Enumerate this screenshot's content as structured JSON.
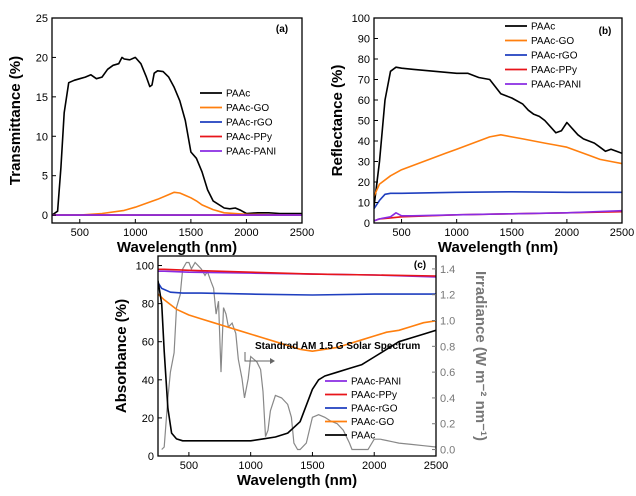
{
  "chart_data": [
    {
      "panel": "(a)",
      "type": "line",
      "xlabel": "Wavelength (nm)",
      "ylabel": "Transmittance (%)",
      "xlim": [
        250,
        2500
      ],
      "ylim": [
        -1,
        25
      ],
      "xticks": [
        500,
        1000,
        1500,
        2000,
        2500
      ],
      "yticks": [
        0,
        5,
        10,
        15,
        20,
        25
      ],
      "legend_position": "center-right",
      "series": [
        {
          "name": "PAAc",
          "color": "#000000",
          "x": [
            250,
            300,
            330,
            360,
            400,
            450,
            500,
            550,
            600,
            650,
            700,
            750,
            800,
            850,
            880,
            900,
            950,
            1000,
            1050,
            1100,
            1130,
            1150,
            1170,
            1200,
            1250,
            1300,
            1350,
            1400,
            1450,
            1500,
            1550,
            1600,
            1650,
            1700,
            1800,
            1850,
            1900,
            1950,
            2000,
            2100,
            2200,
            2300,
            2400,
            2500
          ],
          "y": [
            0,
            0.5,
            6,
            13,
            16.8,
            17.1,
            17.3,
            17.5,
            17.8,
            17.3,
            17.5,
            18.5,
            19.0,
            19.2,
            20.0,
            19.8,
            19.7,
            20.0,
            19.2,
            17.5,
            16.3,
            16.5,
            18.0,
            18.3,
            18.2,
            17.5,
            16.2,
            14.5,
            12.0,
            8.0,
            7.2,
            5.5,
            3.2,
            1.8,
            0.9,
            0.8,
            0.9,
            0.6,
            0.2,
            0.3,
            0.3,
            0.2,
            0.2,
            0.2
          ]
        },
        {
          "name": "PAAc-GO",
          "color": "#ff7f0e",
          "x": [
            250,
            500,
            700,
            900,
            1000,
            1100,
            1200,
            1300,
            1350,
            1400,
            1450,
            1500,
            1550,
            1600,
            1700,
            1800,
            2000,
            2200,
            2500
          ],
          "y": [
            0,
            0,
            0.2,
            0.6,
            1.0,
            1.5,
            2.0,
            2.6,
            2.9,
            2.8,
            2.5,
            2.2,
            1.8,
            1.3,
            0.7,
            0.3,
            0.1,
            0.05,
            0
          ]
        },
        {
          "name": "PAAc-rGO",
          "color": "#1f3fbf",
          "x": [
            250,
            2500
          ],
          "y": [
            0,
            0
          ]
        },
        {
          "name": "PAAc-PPy",
          "color": "#e8141a",
          "x": [
            250,
            2500
          ],
          "y": [
            0,
            0
          ]
        },
        {
          "name": "PAAc-PANI",
          "color": "#8a2be2",
          "x": [
            250,
            2500
          ],
          "y": [
            0,
            0
          ]
        }
      ]
    },
    {
      "panel": "(b)",
      "type": "line",
      "xlabel": "Wavelength (nm)",
      "ylabel": "Reflectance (%)",
      "xlim": [
        250,
        2500
      ],
      "ylim": [
        0,
        100
      ],
      "xticks": [
        500,
        1000,
        1500,
        2000,
        2500
      ],
      "yticks": [
        0,
        10,
        20,
        30,
        40,
        50,
        60,
        70,
        80,
        90,
        100
      ],
      "legend_position": "top-right",
      "series": [
        {
          "name": "PAAc",
          "color": "#000000",
          "x": [
            250,
            300,
            350,
            400,
            450,
            500,
            600,
            700,
            800,
            900,
            1000,
            1100,
            1200,
            1300,
            1400,
            1450,
            1500,
            1600,
            1650,
            1700,
            1750,
            1800,
            1850,
            1900,
            1950,
            2000,
            2050,
            2100,
            2150,
            2200,
            2250,
            2300,
            2350,
            2400,
            2450,
            2500
          ],
          "y": [
            8,
            30,
            60,
            74,
            76,
            75.5,
            75,
            74.5,
            74,
            73.5,
            73,
            73,
            71,
            70,
            63,
            62,
            61,
            58,
            55,
            53,
            52,
            50,
            47,
            44,
            45,
            49,
            46,
            43,
            41,
            40,
            39,
            37,
            35,
            36,
            35,
            34
          ]
        },
        {
          "name": "PAAc-GO",
          "color": "#ff7f0e",
          "x": [
            250,
            300,
            400,
            500,
            600,
            700,
            800,
            900,
            1000,
            1100,
            1200,
            1300,
            1400,
            1500,
            1600,
            1700,
            1800,
            1900,
            2000,
            2100,
            2200,
            2300,
            2400,
            2500
          ],
          "y": [
            13,
            19,
            23,
            26,
            28,
            30,
            32,
            34,
            36,
            38,
            40,
            42,
            43,
            42,
            41,
            40,
            39,
            38,
            37,
            35,
            33,
            31,
            30,
            29
          ]
        },
        {
          "name": "PAAc-rGO",
          "color": "#1f3fbf",
          "x": [
            250,
            300,
            350,
            400,
            500,
            1000,
            1500,
            2000,
            2500
          ],
          "y": [
            7,
            11,
            14,
            14.5,
            14.5,
            15,
            15.2,
            15,
            15
          ]
        },
        {
          "name": "PAAc-PPy",
          "color": "#e8141a",
          "x": [
            250,
            300,
            400,
            500,
            1000,
            1500,
            2000,
            2500
          ],
          "y": [
            1,
            2,
            2.5,
            3,
            4,
            4.5,
            5,
            5.5
          ]
        },
        {
          "name": "PAAc-PANI",
          "color": "#8a2be2",
          "x": [
            250,
            300,
            400,
            450,
            500,
            600,
            1000,
            1500,
            2000,
            2500
          ],
          "y": [
            1,
            2,
            3,
            5,
            3.5,
            3.5,
            4,
            4.5,
            5,
            6
          ]
        }
      ]
    },
    {
      "panel": "(c)",
      "type": "line",
      "xlabel": "Wavelength (nm)",
      "ylabel": "Absorbance (%)",
      "y2label": "Irradiance (W m⁻² nm⁻¹)",
      "xlim": [
        250,
        2500
      ],
      "ylim": [
        0,
        105
      ],
      "y2lim": [
        -0.05,
        1.5
      ],
      "xticks": [
        500,
        1000,
        1500,
        2000,
        2500
      ],
      "yticks": [
        0,
        20,
        40,
        60,
        80,
        100
      ],
      "y2ticks": [
        0.0,
        0.2,
        0.4,
        0.6,
        0.8,
        1.0,
        1.2,
        1.4
      ],
      "legend_position": "bottom-right",
      "annotation": "Standrad AM 1.5 G Solar Spectrum",
      "series": [
        {
          "name": "PAAc-PANI",
          "color": "#8a2be2",
          "x": [
            250,
            300,
            500,
            1000,
            1500,
            2000,
            2500
          ],
          "y": [
            97,
            97,
            96.5,
            96,
            95.5,
            95,
            94
          ]
        },
        {
          "name": "PAAc-PPy",
          "color": "#e8141a",
          "x": [
            250,
            300,
            500,
            1000,
            1500,
            2000,
            2500
          ],
          "y": [
            98,
            98,
            97.5,
            96.5,
            95.5,
            95,
            94.5
          ]
        },
        {
          "name": "PAAc-rGO",
          "color": "#1f3fbf",
          "x": [
            250,
            280,
            350,
            450,
            600,
            1000,
            1500,
            2000,
            2500
          ],
          "y": [
            91,
            88,
            86,
            85.5,
            85.5,
            85,
            84.5,
            85,
            85
          ]
        },
        {
          "name": "PAAc-GO",
          "color": "#ff7f0e",
          "x": [
            250,
            300,
            400,
            500,
            600,
            700,
            800,
            900,
            1000,
            1100,
            1200,
            1300,
            1400,
            1500,
            1600,
            1700,
            1800,
            1900,
            2000,
            2100,
            2200,
            2300,
            2400,
            2500
          ],
          "y": [
            85,
            82,
            77,
            74,
            72,
            70,
            68,
            66,
            64,
            62,
            60,
            58,
            56,
            55,
            56,
            57,
            59,
            61,
            63,
            65,
            66,
            68,
            70,
            71
          ]
        },
        {
          "name": "PAAc",
          "color": "#000000",
          "x": [
            250,
            280,
            300,
            330,
            360,
            400,
            450,
            500,
            600,
            800,
            1000,
            1100,
            1200,
            1300,
            1400,
            1500,
            1550,
            1600,
            1700,
            1800,
            1900,
            2000,
            2100,
            2200,
            2300,
            2400,
            2500
          ],
          "y": [
            92,
            80,
            55,
            25,
            12,
            9,
            8,
            8,
            8,
            8,
            8,
            9,
            10,
            12,
            18,
            35,
            40,
            42,
            44,
            46,
            48,
            52,
            56,
            60,
            62,
            64,
            66
          ]
        }
      ],
      "secondary_series": [
        {
          "name": "Standrad AM 1.5 G Solar Spectrum",
          "color": "#888888",
          "axis": "y2",
          "x": [
            280,
            300,
            330,
            350,
            380,
            400,
            430,
            450,
            480,
            500,
            520,
            550,
            580,
            600,
            630,
            650,
            680,
            700,
            720,
            740,
            760,
            780,
            800,
            820,
            850,
            880,
            900,
            930,
            950,
            980,
            1000,
            1050,
            1080,
            1100,
            1120,
            1140,
            1160,
            1200,
            1250,
            1300,
            1330,
            1350,
            1380,
            1400,
            1450,
            1500,
            1550,
            1600,
            1650,
            1700,
            1750,
            1800,
            1820,
            1850,
            1900,
            1950,
            2000,
            2050,
            2100,
            2150,
            2200,
            2300,
            2400,
            2500
          ],
          "y": [
            0.0,
            0.02,
            0.4,
            0.6,
            0.75,
            1.1,
            1.2,
            1.4,
            1.45,
            1.45,
            1.4,
            1.45,
            1.42,
            1.4,
            1.35,
            1.38,
            1.3,
            1.25,
            1.05,
            1.15,
            0.6,
            1.1,
            1.05,
            0.95,
            0.98,
            0.9,
            0.7,
            0.55,
            0.4,
            0.55,
            0.72,
            0.68,
            0.62,
            0.45,
            0.1,
            0.15,
            0.3,
            0.42,
            0.4,
            0.35,
            0.25,
            0.05,
            0.0,
            0.0,
            0.05,
            0.25,
            0.27,
            0.25,
            0.22,
            0.2,
            0.15,
            0.05,
            0.0,
            0.0,
            0.0,
            0.0,
            0.08,
            0.08,
            0.07,
            0.06,
            0.05,
            0.04,
            0.03,
            0.02
          ]
        }
      ]
    }
  ]
}
